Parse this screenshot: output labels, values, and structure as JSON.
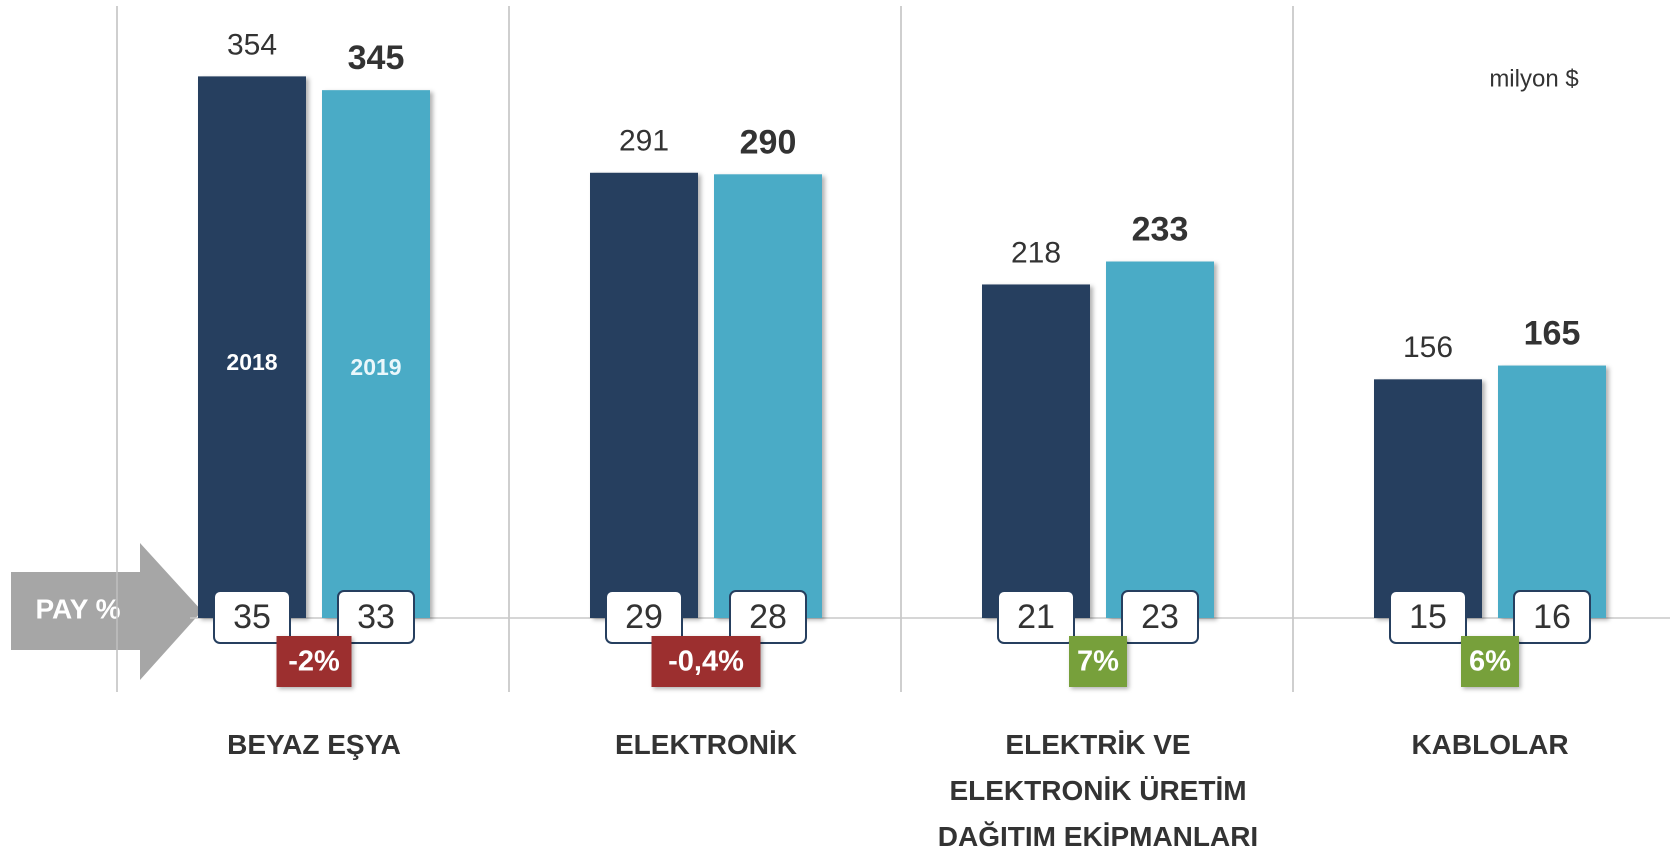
{
  "chart_data": {
    "type": "bar",
    "unit_label": "milyon $",
    "share_label": "PAY %",
    "categories": [
      "BEYAZ EŞYA",
      "ELEKTRONİK",
      "ELEKTRİK VE ELEKTRONİK ÜRETİM DAĞITIM EKİPMANLARI",
      "KABLOLAR"
    ],
    "series": [
      {
        "name": "2018",
        "color": "#263f5f",
        "values": [
          354,
          291,
          218,
          156
        ],
        "shares": [
          35,
          29,
          21,
          15
        ]
      },
      {
        "name": "2019",
        "color": "#4aabc6",
        "values": [
          345,
          290,
          233,
          165
        ],
        "shares": [
          33,
          28,
          23,
          16
        ]
      }
    ],
    "changes": {
      "values": [
        -2,
        -0.4,
        7,
        6
      ],
      "value_labels": [
        "-2%",
        "-0,4%",
        "7%",
        "6%"
      ],
      "colors": {
        "negative": "#9c2f2f",
        "positive": "#77a03b"
      }
    },
    "ylim": [
      0,
      400
    ]
  }
}
